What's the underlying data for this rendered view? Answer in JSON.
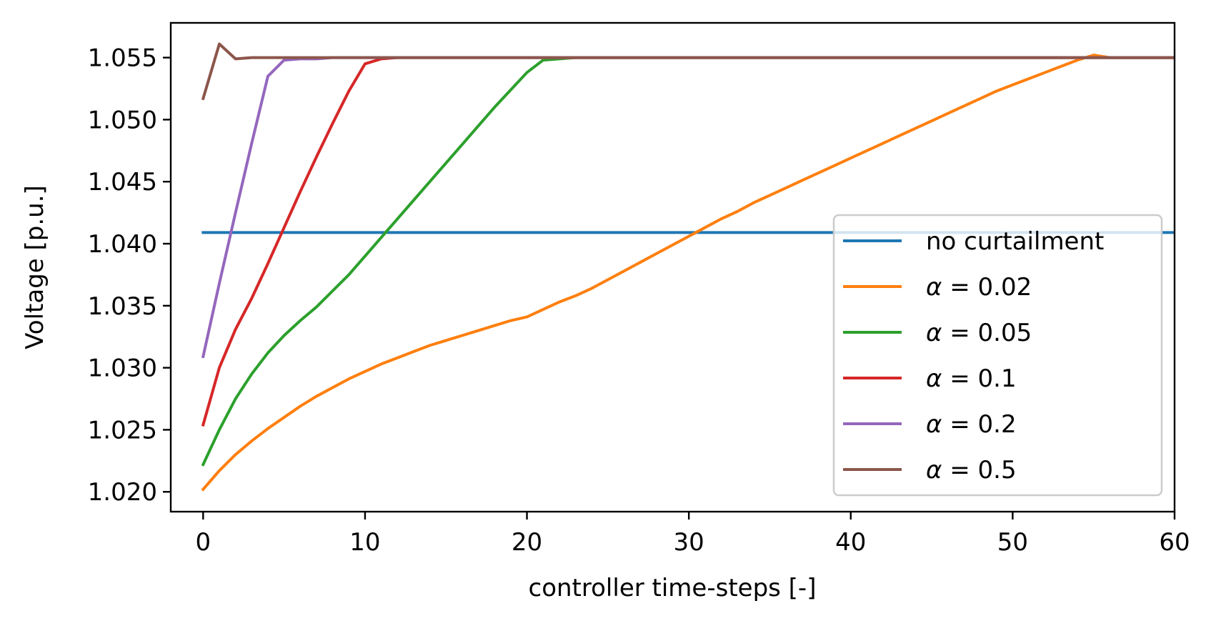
{
  "chart_data": {
    "type": "line",
    "title": "",
    "xlabel": "controller time-steps [-]",
    "ylabel": "Voltage [p.u.]",
    "xlim": [
      -2,
      60
    ],
    "ylim": [
      1.0184,
      1.0578
    ],
    "xticks": [
      0,
      10,
      20,
      30,
      40,
      50,
      60
    ],
    "xtick_labels": [
      "0",
      "10",
      "20",
      "30",
      "40",
      "50",
      "60"
    ],
    "yticks": [
      1.02,
      1.025,
      1.03,
      1.035,
      1.04,
      1.045,
      1.05,
      1.055
    ],
    "ytick_labels": [
      "1.020",
      "1.025",
      "1.030",
      "1.035",
      "1.040",
      "1.045",
      "1.050",
      "1.055"
    ],
    "grid": false,
    "legend": {
      "location": "right",
      "entries": [
        {
          "symbol": "",
          "text": "no curtailment"
        },
        {
          "symbol": "α",
          "text": " = 0.02"
        },
        {
          "symbol": "α",
          "text": " = 0.05"
        },
        {
          "symbol": "α",
          "text": " = 0.1"
        },
        {
          "symbol": "α",
          "text": " = 0.2"
        },
        {
          "symbol": "α",
          "text": " = 0.5"
        }
      ]
    },
    "series": [
      {
        "name": "no curtailment",
        "color": "#1f77b4",
        "x": [
          0,
          60
        ],
        "y": [
          1.0409,
          1.0409
        ]
      },
      {
        "name": "α = 0.02",
        "color": "#ff7f0e",
        "x": [
          0,
          1,
          2,
          3,
          4,
          5,
          6,
          7,
          8,
          9,
          10,
          11,
          12,
          13,
          14,
          15,
          16,
          17,
          18,
          19,
          20,
          21,
          22,
          23,
          24,
          25,
          26,
          27,
          28,
          29,
          30,
          31,
          32,
          33,
          34,
          35,
          36,
          37,
          38,
          39,
          40,
          41,
          42,
          43,
          44,
          45,
          46,
          47,
          48,
          49,
          50,
          51,
          52,
          53,
          54,
          55,
          56,
          57,
          58,
          59,
          60
        ],
        "y": [
          1.0202,
          1.0217,
          1.023,
          1.0241,
          1.0251,
          1.026,
          1.0269,
          1.0277,
          1.0284,
          1.0291,
          1.0297,
          1.0303,
          1.0308,
          1.0313,
          1.0318,
          1.0322,
          1.0326,
          1.033,
          1.0334,
          1.0338,
          1.0341,
          1.0347,
          1.0353,
          1.0358,
          1.0364,
          1.0371,
          1.0378,
          1.0385,
          1.0392,
          1.0399,
          1.0406,
          1.0413,
          1.042,
          1.0426,
          1.0433,
          1.0439,
          1.0445,
          1.0451,
          1.0457,
          1.0463,
          1.0469,
          1.0475,
          1.0481,
          1.0487,
          1.0493,
          1.0499,
          1.0505,
          1.0511,
          1.0517,
          1.0523,
          1.0528,
          1.0533,
          1.0538,
          1.0543,
          1.0548,
          1.0552,
          1.055,
          1.055,
          1.055,
          1.055,
          1.055
        ]
      },
      {
        "name": "α = 0.05",
        "color": "#2ca02c",
        "x": [
          0,
          1,
          2,
          3,
          4,
          5,
          6,
          7,
          8,
          9,
          10,
          11,
          12,
          13,
          14,
          15,
          16,
          17,
          18,
          19,
          20,
          21,
          22,
          23,
          24,
          25,
          30,
          40,
          50,
          60
        ],
        "y": [
          1.0222,
          1.025,
          1.0275,
          1.0295,
          1.0312,
          1.0326,
          1.0338,
          1.0349,
          1.0362,
          1.0375,
          1.039,
          1.0405,
          1.042,
          1.0435,
          1.045,
          1.0465,
          1.048,
          1.0495,
          1.051,
          1.0524,
          1.0538,
          1.0548,
          1.0549,
          1.055,
          1.055,
          1.055,
          1.055,
          1.055,
          1.055,
          1.055
        ]
      },
      {
        "name": "α = 0.1",
        "color": "#d62728",
        "x": [
          0,
          1,
          2,
          3,
          4,
          5,
          6,
          7,
          8,
          9,
          10,
          11,
          12,
          15,
          20,
          30,
          40,
          50,
          60
        ],
        "y": [
          1.0254,
          1.03,
          1.0331,
          1.0356,
          1.0384,
          1.0413,
          1.0442,
          1.047,
          1.0497,
          1.0523,
          1.0545,
          1.0549,
          1.055,
          1.055,
          1.055,
          1.055,
          1.055,
          1.055,
          1.055
        ]
      },
      {
        "name": "α = 0.2",
        "color": "#9467bd",
        "x": [
          0,
          1,
          2,
          3,
          4,
          5,
          6,
          7,
          8,
          10,
          20,
          30,
          40,
          50,
          60
        ],
        "y": [
          1.0309,
          1.0368,
          1.0425,
          1.0481,
          1.0535,
          1.0548,
          1.0549,
          1.0549,
          1.055,
          1.055,
          1.055,
          1.055,
          1.055,
          1.055,
          1.055
        ]
      },
      {
        "name": "α = 0.5",
        "color": "#8c564b",
        "x": [
          0,
          1,
          2,
          3,
          5,
          10,
          20,
          30,
          40,
          50,
          60
        ],
        "y": [
          1.0517,
          1.0561,
          1.0549,
          1.055,
          1.055,
          1.055,
          1.055,
          1.055,
          1.055,
          1.055,
          1.055
        ]
      }
    ]
  }
}
